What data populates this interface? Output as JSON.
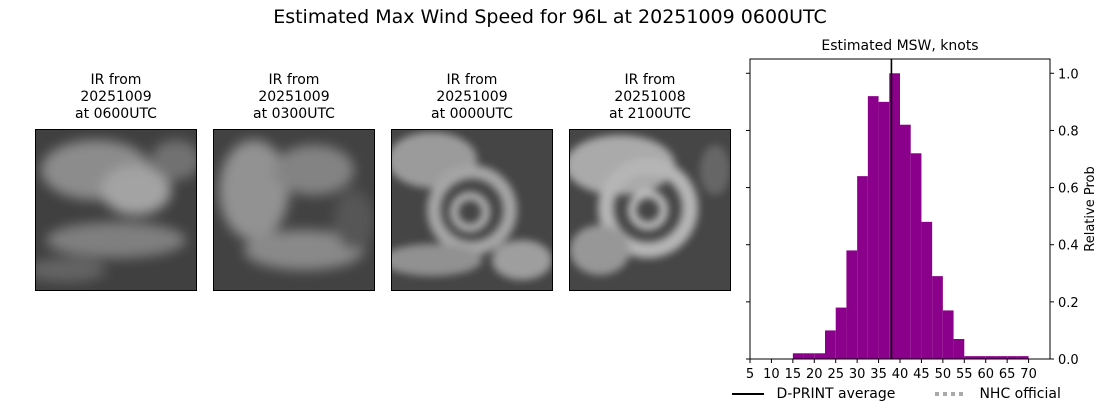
{
  "suptitle": "Estimated Max Wind Speed for 96L at 20251009 0600UTC",
  "panels": [
    {
      "line1": "IR from",
      "line2": "20251009",
      "line3": "at 0600UTC"
    },
    {
      "line1": "IR from",
      "line2": "20251009",
      "line3": "at 0300UTC"
    },
    {
      "line1": "IR from",
      "line2": "20251009",
      "line3": "at 0000UTC"
    },
    {
      "line1": "IR from",
      "line2": "20251008",
      "line3": "at 2100UTC"
    }
  ],
  "chart_data": {
    "type": "bar",
    "title": "Estimated MSW, knots",
    "xlabel": "",
    "ylabel": "Relative Prob",
    "xlim": [
      5,
      75
    ],
    "ylim": [
      0,
      1.05
    ],
    "xticks": [
      5,
      10,
      15,
      20,
      25,
      30,
      35,
      40,
      45,
      50,
      55,
      60,
      65,
      70
    ],
    "yticks": [
      0.0,
      0.2,
      0.4,
      0.6,
      0.8,
      1.0
    ],
    "ytick_labels": [
      "0.0",
      "0.2",
      "0.4",
      "0.6",
      "0.8",
      "1.0"
    ],
    "bin_width": 2.5,
    "bins": [
      {
        "x0": 15,
        "value": 0.02
      },
      {
        "x0": 17.5,
        "value": 0.02
      },
      {
        "x0": 20,
        "value": 0.02
      },
      {
        "x0": 22.5,
        "value": 0.1
      },
      {
        "x0": 25,
        "value": 0.18
      },
      {
        "x0": 27.5,
        "value": 0.38
      },
      {
        "x0": 30,
        "value": 0.64
      },
      {
        "x0": 32.5,
        "value": 0.92
      },
      {
        "x0": 35,
        "value": 0.9
      },
      {
        "x0": 37.5,
        "value": 1.0
      },
      {
        "x0": 40,
        "value": 0.82
      },
      {
        "x0": 42.5,
        "value": 0.72
      },
      {
        "x0": 45,
        "value": 0.48
      },
      {
        "x0": 47.5,
        "value": 0.29
      },
      {
        "x0": 50,
        "value": 0.17
      },
      {
        "x0": 52.5,
        "value": 0.07
      },
      {
        "x0": 55,
        "value": 0.01
      },
      {
        "x0": 57.5,
        "value": 0.01
      },
      {
        "x0": 60,
        "value": 0.01
      },
      {
        "x0": 62.5,
        "value": 0.01
      },
      {
        "x0": 65,
        "value": 0.01
      },
      {
        "x0": 67.5,
        "value": 0.01
      }
    ],
    "dprint_average": 38,
    "bar_color": "#8b008b",
    "grid": false,
    "legend": {
      "placement": "bottom",
      "entries": [
        {
          "name": "D-PRINT average",
          "style": "solid",
          "color": "#000000"
        },
        {
          "name": "NHC official",
          "style": "dotted",
          "color": "#aaaaaa"
        }
      ]
    }
  }
}
